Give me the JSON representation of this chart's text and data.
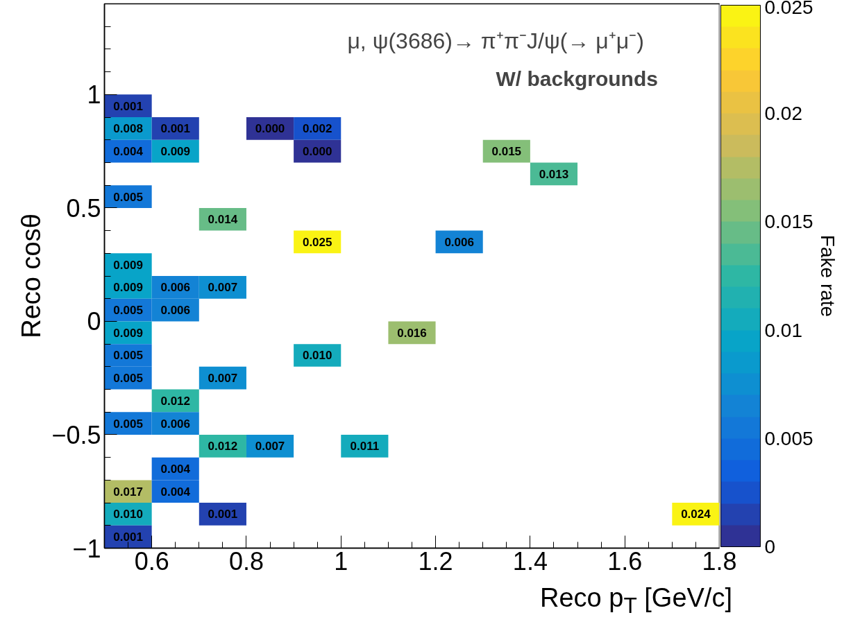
{
  "chart_data": {
    "type": "heatmap",
    "title": "μ, ψ(3686)→  π⁺π⁻J/ψ(→  μ⁺μ⁻)",
    "subtitle": "W/ backgrounds",
    "xlabel": "Reco p$_{T}$ [GeV/c]",
    "ylabel": "Reco cosθ",
    "clabel": "Fake rate",
    "x": [
      0.55,
      0.65,
      0.75,
      0.85,
      0.95,
      1.05,
      1.15,
      1.25,
      1.35,
      1.45,
      1.55,
      1.65,
      1.75
    ],
    "y": [
      0.95,
      0.85,
      0.75,
      0.65,
      0.55,
      0.45,
      0.35,
      0.25,
      0.15,
      0.05,
      -0.05,
      -0.15,
      -0.25,
      -0.35,
      -0.45,
      -0.55,
      -0.65,
      -0.75,
      -0.85,
      -0.95
    ],
    "cells": [
      [
        0.001,
        null,
        null,
        null,
        null,
        null,
        null,
        null,
        null,
        null,
        null,
        null,
        null
      ],
      [
        0.008,
        0.001,
        null,
        0.0,
        0.002,
        null,
        null,
        null,
        null,
        null,
        null,
        null,
        null
      ],
      [
        0.004,
        0.009,
        null,
        null,
        0.0,
        null,
        null,
        null,
        0.015,
        null,
        null,
        null,
        null
      ],
      [
        null,
        null,
        null,
        null,
        null,
        null,
        null,
        null,
        null,
        0.013,
        null,
        null,
        null
      ],
      [
        0.005,
        null,
        null,
        null,
        null,
        null,
        null,
        null,
        null,
        null,
        null,
        null,
        null
      ],
      [
        null,
        null,
        0.014,
        null,
        null,
        null,
        null,
        null,
        null,
        null,
        null,
        null,
        null
      ],
      [
        null,
        null,
        null,
        null,
        0.025,
        null,
        null,
        0.006,
        null,
        null,
        null,
        null,
        null
      ],
      [
        0.009,
        null,
        null,
        null,
        null,
        null,
        null,
        null,
        null,
        null,
        null,
        null,
        null
      ],
      [
        0.009,
        0.006,
        0.007,
        null,
        null,
        null,
        null,
        null,
        null,
        null,
        null,
        null,
        null
      ],
      [
        0.005,
        0.006,
        null,
        null,
        null,
        null,
        null,
        null,
        null,
        null,
        null,
        null,
        null
      ],
      [
        0.009,
        null,
        null,
        null,
        null,
        null,
        0.016,
        null,
        null,
        null,
        null,
        null,
        null
      ],
      [
        0.005,
        null,
        null,
        null,
        0.01,
        null,
        null,
        null,
        null,
        null,
        null,
        null,
        null
      ],
      [
        0.005,
        null,
        0.007,
        null,
        null,
        null,
        null,
        null,
        null,
        null,
        null,
        null,
        null
      ],
      [
        null,
        0.012,
        null,
        null,
        null,
        null,
        null,
        null,
        null,
        null,
        null,
        null,
        null
      ],
      [
        0.005,
        0.006,
        null,
        null,
        null,
        null,
        null,
        null,
        null,
        null,
        null,
        null,
        null
      ],
      [
        null,
        null,
        0.012,
        0.007,
        null,
        0.011,
        null,
        null,
        null,
        null,
        null,
        null,
        null
      ],
      [
        null,
        0.004,
        null,
        null,
        null,
        null,
        null,
        null,
        null,
        null,
        null,
        null,
        null
      ],
      [
        0.017,
        0.004,
        null,
        null,
        null,
        null,
        null,
        null,
        null,
        null,
        null,
        null,
        null
      ],
      [
        0.01,
        null,
        0.001,
        null,
        null,
        null,
        null,
        null,
        null,
        null,
        null,
        null,
        0.024
      ],
      [
        0.001,
        null,
        null,
        null,
        null,
        null,
        null,
        null,
        null,
        null,
        null,
        null,
        null
      ]
    ],
    "cell_labels": [
      [
        "0.001",
        null,
        null,
        null,
        null,
        null,
        null,
        null,
        null,
        null,
        null,
        null,
        null
      ],
      [
        "0.008",
        "0.001",
        null,
        "0.000",
        "0.002",
        null,
        null,
        null,
        null,
        null,
        null,
        null,
        null
      ],
      [
        "0.004",
        "0.009",
        null,
        null,
        "0.000",
        null,
        null,
        null,
        "0.015",
        null,
        null,
        null,
        null
      ],
      [
        null,
        null,
        null,
        null,
        null,
        null,
        null,
        null,
        null,
        "0.013",
        null,
        null,
        null
      ],
      [
        "0.005",
        null,
        null,
        null,
        null,
        null,
        null,
        null,
        null,
        null,
        null,
        null,
        null
      ],
      [
        null,
        null,
        "0.014",
        null,
        null,
        null,
        null,
        null,
        null,
        null,
        null,
        null,
        null
      ],
      [
        null,
        null,
        null,
        null,
        "0.025",
        null,
        null,
        "0.006",
        null,
        null,
        null,
        null,
        null
      ],
      [
        "0.009",
        null,
        null,
        null,
        null,
        null,
        null,
        null,
        null,
        null,
        null,
        null,
        null
      ],
      [
        "0.009",
        "0.006",
        "0.007",
        null,
        null,
        null,
        null,
        null,
        null,
        null,
        null,
        null,
        null
      ],
      [
        "0.005",
        "0.006",
        null,
        null,
        null,
        null,
        null,
        null,
        null,
        null,
        null,
        null,
        null
      ],
      [
        "0.009",
        null,
        null,
        null,
        null,
        null,
        "0.016",
        null,
        null,
        null,
        null,
        null,
        null
      ],
      [
        "0.005",
        null,
        null,
        null,
        "0.010",
        null,
        null,
        null,
        null,
        null,
        null,
        null,
        null
      ],
      [
        "0.005",
        null,
        "0.007",
        null,
        null,
        null,
        null,
        null,
        null,
        null,
        null,
        null,
        null
      ],
      [
        null,
        "0.012",
        null,
        null,
        null,
        null,
        null,
        null,
        null,
        null,
        null,
        null,
        null
      ],
      [
        "0.005",
        "0.006",
        null,
        null,
        null,
        null,
        null,
        null,
        null,
        null,
        null,
        null,
        null
      ],
      [
        null,
        null,
        "0.012",
        "0.007",
        null,
        "0.011",
        null,
        null,
        null,
        null,
        null,
        null,
        null
      ],
      [
        null,
        "0.004",
        null,
        null,
        null,
        null,
        null,
        null,
        null,
        null,
        null,
        null,
        null
      ],
      [
        "0.017",
        "0.004",
        null,
        null,
        null,
        null,
        null,
        null,
        null,
        null,
        null,
        null,
        null
      ],
      [
        "0.010",
        null,
        "0.001",
        null,
        null,
        null,
        null,
        null,
        null,
        null,
        null,
        null,
        "0.024"
      ],
      [
        "0.001",
        null,
        null,
        null,
        null,
        null,
        null,
        null,
        null,
        null,
        null,
        null,
        null
      ]
    ],
    "xlim": [
      0.5,
      1.8
    ],
    "ylim": [
      -1,
      1.4
    ],
    "xticks": [
      0.6,
      0.8,
      1,
      1.2,
      1.4,
      1.6,
      1.8
    ],
    "yticks": [
      {
        "value": -1,
        "label": "−1"
      },
      {
        "value": -0.5,
        "label": "−0.5"
      },
      0,
      0.5,
      1
    ],
    "clim": [
      0,
      0.025
    ],
    "cticks": [
      0,
      0.005,
      0.01,
      0.015,
      0.02,
      0.025
    ],
    "grid": false
  }
}
